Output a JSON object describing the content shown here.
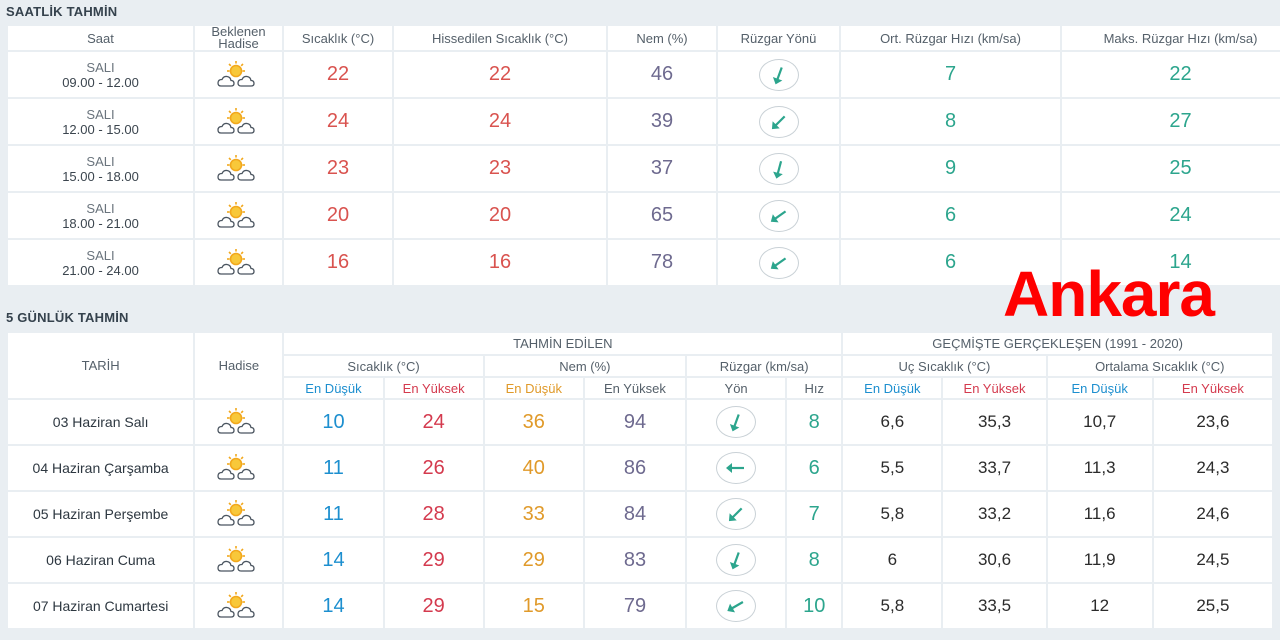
{
  "overlay_text": "Ankara",
  "hourly": {
    "title": "SAATLİK TAHMİN",
    "headers": {
      "time": "Saat",
      "event_line1": "Beklenen",
      "event_line2": "Hadise",
      "temp": "Sıcaklık (°C)",
      "feels": "Hissedilen Sıcaklık (°C)",
      "humidity": "Nem (%)",
      "wind_dir": "Rüzgar Yönü",
      "wind_avg": "Ort. Rüzgar Hızı (km/sa)",
      "wind_max": "Maks. Rüzgar Hızı (km/sa)"
    },
    "rows": [
      {
        "day": "SALI",
        "time": "09.00 - 12.00",
        "icon": "partly-cloudy-icon",
        "temp": "22",
        "feels": "22",
        "humidity": "46",
        "wind_icon": "wind-direction-icon",
        "wind_avg": "7",
        "wind_max": "22"
      },
      {
        "day": "SALI",
        "time": "12.00 - 15.00",
        "icon": "partly-cloudy-icon",
        "temp": "24",
        "feels": "24",
        "humidity": "39",
        "wind_icon": "wind-direction-icon",
        "wind_avg": "8",
        "wind_max": "27"
      },
      {
        "day": "SALI",
        "time": "15.00 - 18.00",
        "icon": "partly-cloudy-icon",
        "temp": "23",
        "feels": "23",
        "humidity": "37",
        "wind_icon": "wind-direction-icon",
        "wind_avg": "9",
        "wind_max": "25"
      },
      {
        "day": "SALI",
        "time": "18.00 - 21.00",
        "icon": "partly-cloudy-icon",
        "temp": "20",
        "feels": "20",
        "humidity": "65",
        "wind_icon": "wind-direction-icon",
        "wind_avg": "6",
        "wind_max": "24"
      },
      {
        "day": "SALI",
        "time": "21.00 - 24.00",
        "icon": "partly-cloudy-icon",
        "temp": "16",
        "feels": "16",
        "humidity": "78",
        "wind_icon": "wind-direction-icon",
        "wind_avg": "6",
        "wind_max": "14"
      }
    ]
  },
  "daily": {
    "title": "5 GÜNLÜK TAHMİN",
    "headers": {
      "date": "TARİH",
      "event": "Hadise",
      "forecast_group": "TAHMİN EDİLEN",
      "past_group": "GEÇMİŞTE GERÇEKLEŞEN (1991 - 2020)",
      "temp": "Sıcaklık (°C)",
      "humidity": "Nem (%)",
      "wind": "Rüzgar (km/sa)",
      "extreme": "Uç Sıcaklık (°C)",
      "average": "Ortalama Sıcaklık (°C)",
      "low": "En Düşük",
      "high": "En Yüksek",
      "direction": "Yön",
      "speed": "Hız"
    },
    "rows": [
      {
        "date": "03 Haziran Salı",
        "icon": "partly-cloudy-icon",
        "temp_low": "10",
        "temp_high": "24",
        "hum_low": "36",
        "hum_high": "94",
        "wind_speed": "8",
        "ext_low": "6,6",
        "ext_high": "35,3",
        "avg_low": "10,7",
        "avg_high": "23,6"
      },
      {
        "date": "04 Haziran Çarşamba",
        "icon": "partly-cloudy-icon",
        "temp_low": "11",
        "temp_high": "26",
        "hum_low": "40",
        "hum_high": "86",
        "wind_speed": "6",
        "ext_low": "5,5",
        "ext_high": "33,7",
        "avg_low": "11,3",
        "avg_high": "24,3"
      },
      {
        "date": "05 Haziran Perşembe",
        "icon": "partly-cloudy-icon",
        "temp_low": "11",
        "temp_high": "28",
        "hum_low": "33",
        "hum_high": "84",
        "wind_speed": "7",
        "ext_low": "5,8",
        "ext_high": "33,2",
        "avg_low": "11,6",
        "avg_high": "24,6"
      },
      {
        "date": "06 Haziran Cuma",
        "icon": "partly-cloudy-icon",
        "temp_low": "14",
        "temp_high": "29",
        "hum_low": "29",
        "hum_high": "83",
        "wind_speed": "8",
        "ext_low": "6",
        "ext_high": "30,6",
        "avg_low": "11,9",
        "avg_high": "24,5"
      },
      {
        "date": "07 Haziran Cumartesi",
        "icon": "partly-cloudy-icon",
        "temp_low": "14",
        "temp_high": "29",
        "hum_low": "15",
        "hum_high": "79",
        "wind_speed": "10",
        "ext_low": "5,8",
        "ext_high": "33,5",
        "avg_low": "12",
        "avg_high": "25,5"
      }
    ]
  },
  "colors": {
    "temperature": "#d9534f",
    "humidity": "#6e6a8f",
    "wind": "#2ca58d",
    "low": "#1d8fcf",
    "high": "#d43a4e",
    "humidity_low": "#e09a2a",
    "overlay": "#ff0000"
  }
}
